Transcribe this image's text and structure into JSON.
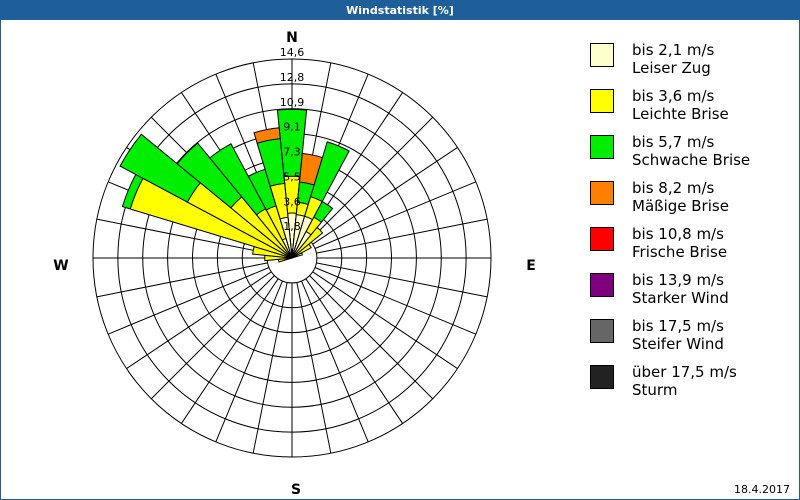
{
  "window": {
    "title": "Windstatistik [%]",
    "date": "18.4.2017"
  },
  "chart_data": {
    "type": "polar-bar",
    "title": "Windstatistik [%]",
    "unit": "%",
    "compass_labels": {
      "N": "N",
      "E": "E",
      "S": "S",
      "W": "W"
    },
    "ring_labels": [
      "1,8",
      "3,6",
      "5,5",
      "7,3",
      "9,1",
      "10,9",
      "12,8",
      "14,6"
    ],
    "rmax": 14.6,
    "sector_count": 32,
    "directions": [
      {
        "bearing": 0,
        "cumulative": [
          3.3,
          6.0,
          10.9
        ]
      },
      {
        "bearing": 11.25,
        "cumulative": [
          3.2,
          4.1,
          5.6,
          7.7
        ]
      },
      {
        "bearing": 22.5,
        "cumulative": [
          3.2,
          4.7,
          8.9
        ]
      },
      {
        "bearing": 33.75,
        "cumulative": [
          2.2,
          3.4,
          4.7
        ]
      },
      {
        "bearing": 45,
        "cumulative": [
          0,
          2.9
        ]
      },
      {
        "bearing": 56.25,
        "cumulative": [
          0,
          1.6
        ]
      },
      {
        "bearing": 67.5,
        "cumulative": [
          0,
          0.8
        ]
      },
      {
        "bearing": 258.75,
        "cumulative": [
          0,
          1.0
        ]
      },
      {
        "bearing": 270,
        "cumulative": [
          0,
          2.0
        ]
      },
      {
        "bearing": 281.25,
        "cumulative": [
          0,
          2.9
        ]
      },
      {
        "bearing": 292.5,
        "cumulative": [
          0,
          12.4,
          13.0
        ]
      },
      {
        "bearing": 303.75,
        "cumulative": [
          0,
          8.7,
          14.3
        ]
      },
      {
        "bearing": 315,
        "cumulative": [
          0,
          5.8,
          10.9
        ]
      },
      {
        "bearing": 326.25,
        "cumulative": [
          0,
          4.1,
          9.5
        ]
      },
      {
        "bearing": 337.5,
        "cumulative": [
          1.5,
          4.0,
          6.8
        ]
      },
      {
        "bearing": 348.75,
        "cumulative": [
          3.0,
          5.5,
          8.8,
          9.6
        ]
      }
    ],
    "legend": [
      {
        "line1": "bis 2,1 m/s",
        "line2": "Leiser Zug",
        "color": "#ffffcc"
      },
      {
        "line1": "bis 3,6 m/s",
        "line2": "Leichte Brise",
        "color": "#ffff00"
      },
      {
        "line1": "bis 5,7 m/s",
        "line2": "Schwache Brise",
        "color": "#00ee00"
      },
      {
        "line1": "bis 8,2 m/s",
        "line2": "Mäßige Brise",
        "color": "#ff8000"
      },
      {
        "line1": "bis 10,8 m/s",
        "line2": "Frische Brise",
        "color": "#ff0000"
      },
      {
        "line1": "bis 13,9 m/s",
        "line2": "Starker Wind",
        "color": "#7f007f"
      },
      {
        "line1": "bis 17,5 m/s",
        "line2": "Steifer Wind",
        "color": "#666666"
      },
      {
        "line1": "über 17,5 m/s",
        "line2": "Sturm",
        "color": "#222222"
      }
    ],
    "legend_position": "right"
  }
}
